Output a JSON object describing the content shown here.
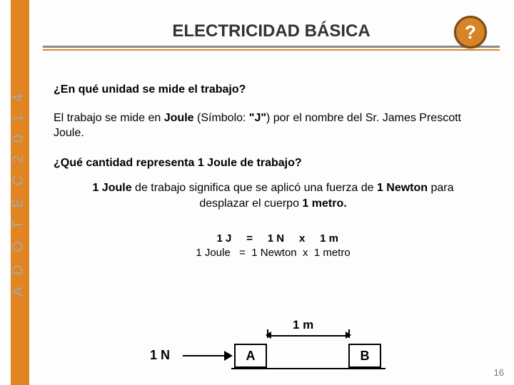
{
  "brand": {
    "sidebar_color": "#e18522",
    "side_text": "A D O T E C  2 0 1 4",
    "side_text_color": "#a8a8a8"
  },
  "header": {
    "title": "ELECTRICIDAD BÁSICA",
    "help_icon_glyph": "?",
    "help_bg": "#d78327",
    "help_border": "#7d4b13",
    "divider_gray": "#8a8a8a",
    "divider_orange": "#e18522"
  },
  "body": {
    "q1": "¿En qué unidad se mide el trabajo?",
    "a1_pre": "El trabajo se mide en ",
    "a1_bold1": "Joule",
    "a1_mid": " (Símbolo: ",
    "a1_bold2": "\"J\"",
    "a1_post": ") por el nombre del Sr. James Prescott Joule.",
    "q2": "¿Qué cantidad representa 1 Joule de trabajo?",
    "a2_b1": "1 Joule",
    "a2_t1": " de trabajo significa que se aplicó una fuerza de ",
    "a2_b2": "1 Newton",
    "a2_t2": " para desplazar el cuerpo ",
    "a2_b3": "1 metro.",
    "eq_line1": "   1 J     =     1 N     x     1 m",
    "eq_line2": "1 Joule   =  1 Newton  x  1 metro"
  },
  "diagram": {
    "force_label": "1 N",
    "box_a": "A",
    "box_b": "B",
    "distance_label": "1 m"
  },
  "page_number": "16"
}
